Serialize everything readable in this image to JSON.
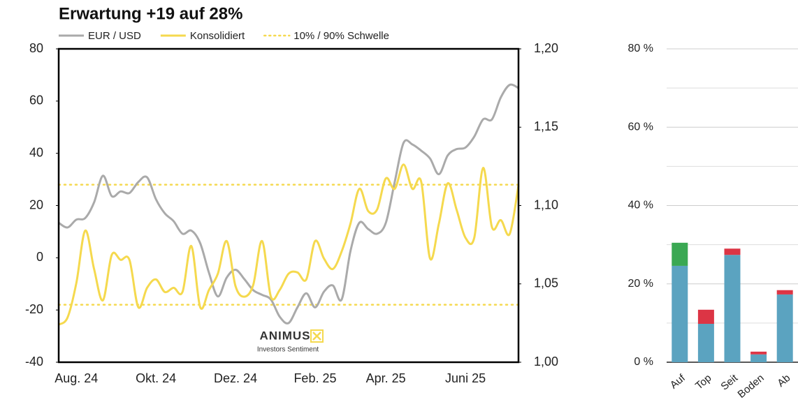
{
  "chart_data": [
    {
      "type": "line",
      "title": "Erwartung +19 auf 28%",
      "categories": [
        null,
        null,
        "Aug. 24",
        null,
        null,
        null,
        null,
        null,
        null,
        null,
        null,
        "Okt. 24",
        null,
        null,
        null,
        null,
        null,
        null,
        null,
        null,
        "Dez. 24",
        null,
        null,
        null,
        null,
        null,
        null,
        null,
        null,
        "Feb. 25",
        null,
        null,
        null,
        null,
        null,
        null,
        null,
        "Apr. 25",
        null,
        null,
        null,
        null,
        null,
        null,
        null,
        null,
        "Juni 25",
        null,
        null,
        null,
        null,
        null,
        null
      ],
      "series": [
        {
          "name": "EUR / USD",
          "color": "#aaaaaa",
          "axis": "y2",
          "values": [
            1.089,
            1.086,
            1.091,
            1.092,
            1.102,
            1.119,
            1.106,
            1.109,
            1.108,
            1.115,
            1.118,
            1.104,
            1.095,
            1.09,
            1.082,
            1.084,
            1.076,
            1.057,
            1.042,
            1.054,
            1.059,
            1.053,
            1.046,
            1.043,
            1.04,
            1.029,
            1.025,
            1.035,
            1.044,
            1.035,
            1.045,
            1.049,
            1.04,
            1.071,
            1.089,
            1.085,
            1.082,
            1.089,
            1.115,
            1.14,
            1.139,
            1.135,
            1.13,
            1.12,
            1.132,
            1.136,
            1.137,
            1.144,
            1.155,
            1.155,
            1.169,
            1.177,
            1.175
          ]
        },
        {
          "name": "Konsolidiert",
          "color": "#f5d94e",
          "values": [
            -25.6,
            -22.9,
            -9.6,
            10.4,
            -4.3,
            -16.3,
            1.1,
            -0.8,
            -0.8,
            -18.9,
            -11.5,
            -8.3,
            -13.1,
            -11.5,
            -13.1,
            4.5,
            -18.9,
            -12.3,
            -6.1,
            6.4,
            -10.9,
            -14.9,
            -10.4,
            6.4,
            -14.9,
            -12.3,
            -6.1,
            -5.6,
            -8.3,
            6.4,
            -0.3,
            -4.3,
            2.4,
            13.1,
            26.4,
            17.9,
            18.4,
            30.4,
            26.4,
            35.7,
            26.4,
            29.1,
            -0.3,
            13.1,
            28.5,
            18.4,
            7.7,
            7.7,
            34.4,
            11.7,
            14.4,
            9.1,
            27.7
          ]
        }
      ],
      "threshold": {
        "name": "10% / 90% Schwelle",
        "color": "#f5d94e",
        "values": [
          28,
          -18
        ]
      },
      "ylim": [
        -40,
        80
      ],
      "yticks": [
        -40,
        -20,
        0,
        20,
        40,
        60,
        80
      ],
      "y2lim": [
        1.0,
        1.2
      ],
      "y2ticks": [
        {
          "value": 1.0,
          "label": "1,00"
        },
        {
          "value": 1.05,
          "label": "1,05"
        },
        {
          "value": 1.1,
          "label": "1,10"
        },
        {
          "value": 1.15,
          "label": "1,15"
        },
        {
          "value": 1.2,
          "label": "1,20"
        }
      ],
      "logo": {
        "name": "ANIMUS",
        "tagline": "Investors Sentiment"
      }
    },
    {
      "type": "stacked_bar",
      "categories": [
        "Auf",
        "Top",
        "Seit",
        "Boden",
        "Ab"
      ],
      "series": [
        {
          "color": "#5ba3c0",
          "values": [
            24.6,
            9.8,
            27.4,
            2.0,
            17.3
          ]
        },
        {
          "color": "#3aa853",
          "values": [
            5.9,
            null,
            null,
            null,
            null
          ]
        },
        {
          "color": "#dc3545",
          "values": [
            null,
            3.6,
            1.6,
            0.7,
            1.1
          ]
        }
      ],
      "ylim": [
        0,
        80
      ],
      "yticks": [
        {
          "value": 0,
          "label": "0 %"
        },
        {
          "value": 20,
          "label": "20 %"
        },
        {
          "value": 40,
          "label": "40 %"
        },
        {
          "value": 60,
          "label": "60 %"
        },
        {
          "value": 80,
          "label": "80 %"
        }
      ],
      "minor_yticks": [
        10,
        30,
        50,
        70
      ],
      "grid": true
    }
  ]
}
